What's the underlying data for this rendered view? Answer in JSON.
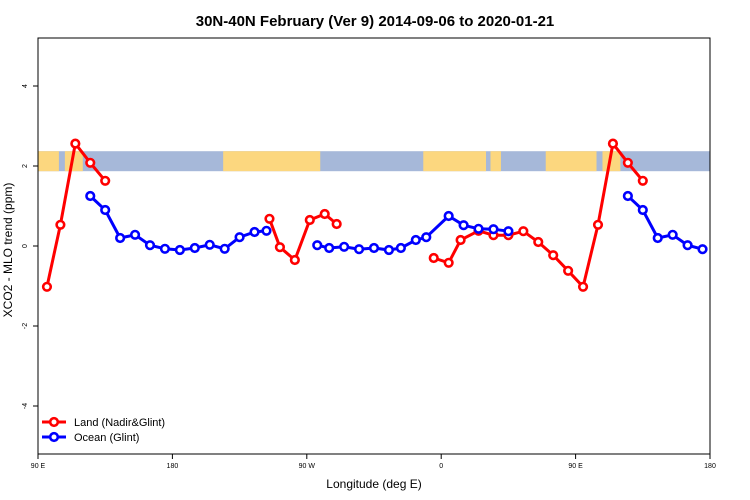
{
  "chart_data": {
    "type": "line",
    "title": "30N-40N February (Ver 9)   2014-09-06 to 2020-01-21",
    "xlabel": "Longitude (deg E)",
    "ylabel": "XCO2 - MLO trend (ppm)",
    "xlim": [
      90,
      540
    ],
    "ylim": [
      -5.2,
      5.2
    ],
    "x_ticks": [
      {
        "value": 90,
        "label": "90 E"
      },
      {
        "value": 180,
        "label": "180"
      },
      {
        "value": 270,
        "label": "90 W"
      },
      {
        "value": 360,
        "label": "0"
      },
      {
        "value": 450,
        "label": "90 E"
      },
      {
        "value": 540,
        "label": "180"
      }
    ],
    "y_ticks": [
      {
        "value": -4,
        "label": "-4"
      },
      {
        "value": -2,
        "label": "-2"
      },
      {
        "value": 0,
        "label": "0"
      },
      {
        "value": 2,
        "label": "2"
      },
      {
        "value": 4,
        "label": "4"
      }
    ],
    "map_band": {
      "ymin": 1.87,
      "ymax": 2.37,
      "ocean_color": "#a6b8d9",
      "land_color": "#fcd77f"
    },
    "legend_position": "bottom-left",
    "series": [
      {
        "name": "Land (Nadir&Glint)",
        "color": "#ff0000",
        "segments": [
          [
            [
              96,
              -1.02
            ],
            [
              105,
              0.53
            ],
            [
              115,
              2.56
            ],
            [
              125,
              2.08
            ],
            [
              135,
              1.63
            ]
          ],
          [
            [
              245,
              0.68
            ],
            [
              252,
              -0.03
            ],
            [
              262,
              -0.35
            ],
            [
              272,
              0.65
            ],
            [
              282,
              0.8
            ],
            [
              290,
              0.55
            ]
          ],
          [
            [
              355,
              -0.3
            ],
            [
              365,
              -0.42
            ],
            [
              373,
              0.15
            ],
            [
              385,
              0.38
            ],
            [
              395,
              0.27
            ],
            [
              405,
              0.27
            ],
            [
              415,
              0.37
            ],
            [
              425,
              0.1
            ],
            [
              435,
              -0.23
            ],
            [
              445,
              -0.62
            ],
            [
              455,
              -1.02
            ],
            [
              465,
              0.53
            ],
            [
              475,
              2.56
            ],
            [
              485,
              2.08
            ],
            [
              495,
              1.63
            ]
          ]
        ]
      },
      {
        "name": "Ocean (Glint)",
        "color": "#0000ff",
        "segments": [
          [
            [
              125,
              1.25
            ],
            [
              135,
              0.9
            ],
            [
              145,
              0.2
            ],
            [
              155,
              0.28
            ],
            [
              165,
              0.02
            ],
            [
              175,
              -0.07
            ],
            [
              185,
              -0.1
            ],
            [
              195,
              -0.05
            ],
            [
              205,
              0.03
            ],
            [
              215,
              -0.07
            ],
            [
              225,
              0.22
            ],
            [
              235,
              0.35
            ],
            [
              243,
              0.38
            ]
          ],
          [
            [
              277,
              0.02
            ],
            [
              285,
              -0.05
            ],
            [
              295,
              -0.02
            ],
            [
              305,
              -0.08
            ],
            [
              315,
              -0.05
            ],
            [
              325,
              -0.1
            ],
            [
              333,
              -0.05
            ],
            [
              343,
              0.15
            ],
            [
              350,
              0.22
            ],
            [
              365,
              0.75
            ],
            [
              375,
              0.52
            ],
            [
              385,
              0.43
            ],
            [
              395,
              0.42
            ],
            [
              405,
              0.37
            ]
          ],
          [
            [
              485,
              1.25
            ],
            [
              495,
              0.9
            ],
            [
              505,
              0.2
            ],
            [
              515,
              0.28
            ],
            [
              525,
              0.02
            ],
            [
              535,
              -0.08
            ]
          ]
        ]
      }
    ]
  }
}
